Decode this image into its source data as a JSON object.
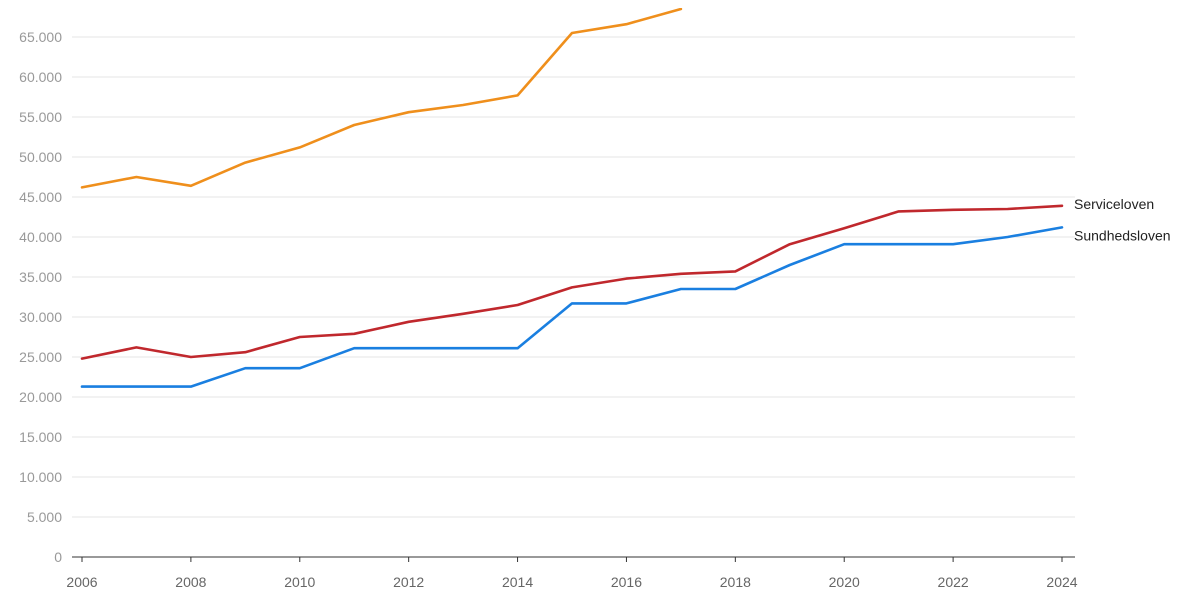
{
  "chart_data": {
    "type": "line",
    "x": [
      2006,
      2007,
      2008,
      2009,
      2010,
      2011,
      2012,
      2013,
      2014,
      2015,
      2016,
      2017,
      2018,
      2019,
      2020,
      2021,
      2022,
      2023,
      2024
    ],
    "x_ticks": [
      "2006",
      "2008",
      "2010",
      "2012",
      "2014",
      "2016",
      "2018",
      "2020",
      "2022",
      "2024"
    ],
    "y_ticks": [
      "0",
      "5.000",
      "10.000",
      "15.000",
      "20.000",
      "25.000",
      "30.000",
      "35.000",
      "40.000",
      "45.000",
      "50.000",
      "55.000",
      "60.000",
      "65.000"
    ],
    "xlim": [
      2006,
      2024
    ],
    "ylim": [
      0,
      68500
    ],
    "grid": true,
    "series": [
      {
        "color": "#ef8f1c",
        "values": [
          46200,
          47500,
          46400,
          49300,
          51200,
          54000,
          55600,
          56500,
          57700,
          65500,
          66600,
          68500,
          null,
          null,
          null,
          null,
          null,
          null,
          null
        ]
      },
      {
        "name": "Serviceloven",
        "color": "#c0282d",
        "values": [
          24800,
          26200,
          25000,
          25600,
          27500,
          27900,
          29400,
          30400,
          31500,
          33700,
          34800,
          35400,
          35700,
          39100,
          41100,
          43200,
          43400,
          43500,
          43900
        ]
      },
      {
        "name": "Sundhedsloven",
        "color": "#1a7fe0",
        "values": [
          21300,
          21300,
          21300,
          23600,
          23600,
          26100,
          26100,
          26100,
          26100,
          31700,
          31700,
          33500,
          33500,
          36500,
          39100,
          39100,
          39100,
          40000,
          41200
        ]
      }
    ]
  }
}
